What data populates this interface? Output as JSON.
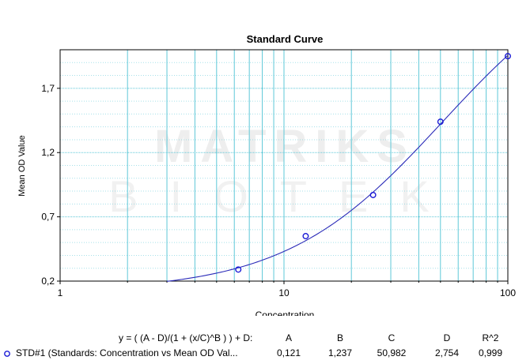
{
  "chart_data": {
    "type": "scatter",
    "title": "Standard Curve",
    "xlabel": "Concentration",
    "ylabel": "Mean OD Value",
    "x_scale": "log",
    "xlim": [
      1,
      100
    ],
    "ylim": [
      0.2,
      2.0
    ],
    "x_ticks": [
      1,
      10,
      100
    ],
    "x_tick_labels": [
      "1",
      "10",
      "100"
    ],
    "y_ticks": [
      0.2,
      0.7,
      1.2,
      1.7
    ],
    "y_tick_labels": [
      "0,2",
      "0,7",
      "1,2",
      "1,7"
    ],
    "grid": true,
    "watermark": {
      "line1": "MATRIKS",
      "line2": "BIOTEK"
    },
    "series": [
      {
        "name": "STD#1 (Standards: Concentration vs Mean OD Val...",
        "points": [
          {
            "x": 6.25,
            "y": 0.29
          },
          {
            "x": 12.5,
            "y": 0.55
          },
          {
            "x": 25,
            "y": 0.87
          },
          {
            "x": 50,
            "y": 1.44
          },
          {
            "x": 100,
            "y": 1.95
          }
        ],
        "marker_color": "#1b1bd6",
        "fit": {
          "equation": "y = ( (A - D)/(1 + (x/C)^B ) ) + D:",
          "A": 0.121,
          "B": 1.237,
          "C": 50.982,
          "D": 2.754,
          "R2": 0.999,
          "x_range": [
            3,
            100
          ],
          "line_color": "#2a2ab8"
        }
      }
    ]
  },
  "legend": {
    "header": {
      "equation": "y = ( (A - D)/(1 + (x/C)^B ) ) + D:",
      "A": "A",
      "B": "B",
      "C": "C",
      "D": "D",
      "R2": "R^2"
    },
    "row": {
      "label": "STD#1 (Standards: Concentration vs Mean OD Val...",
      "A": "0,121",
      "B": "1,237",
      "C": "50,982",
      "D": "2,754",
      "R2": "0,999"
    }
  },
  "colors": {
    "grid": "#5ec8d8",
    "axis": "#000000",
    "marker": "#1b1bd6",
    "curve": "#2a2ab8"
  }
}
